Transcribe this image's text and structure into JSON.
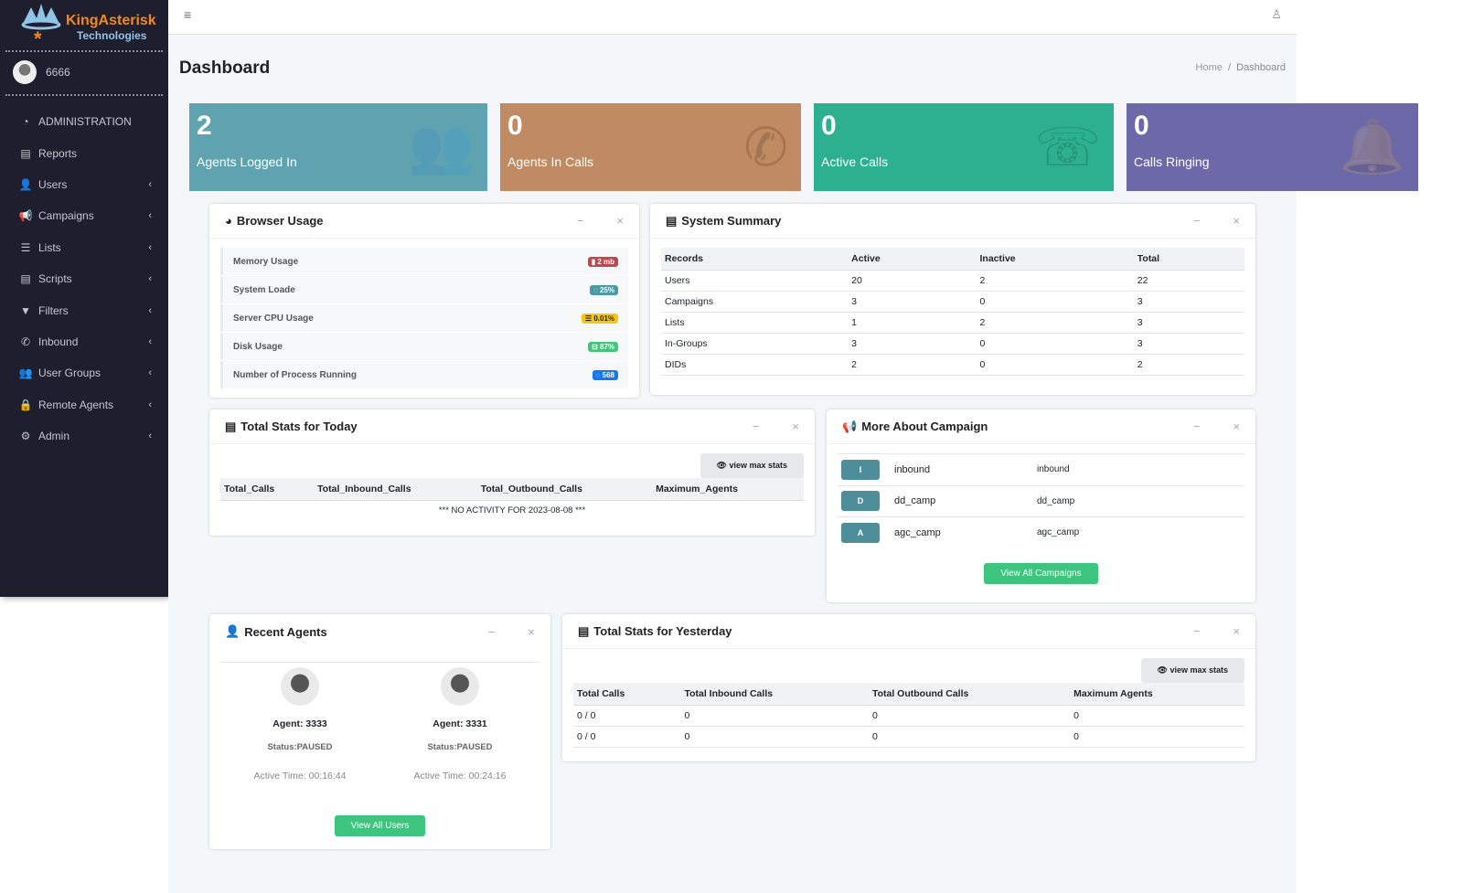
{
  "brand": {
    "name": "KingAsterisk",
    "sub": "Technologies"
  },
  "user": {
    "name": "6666"
  },
  "nav": [
    {
      "label": "ADMINISTRATION",
      "icon": "dashboard-icon",
      "glyph": "◔",
      "chev": ""
    },
    {
      "label": "Reports",
      "icon": "file-icon",
      "glyph": "▤",
      "chev": ""
    },
    {
      "label": "Users",
      "icon": "user-icon",
      "glyph": "👤",
      "chev": "‹"
    },
    {
      "label": "Campaigns",
      "icon": "bullhorn-icon",
      "glyph": "📢",
      "chev": "‹"
    },
    {
      "label": "Lists",
      "icon": "list-icon",
      "glyph": "☰",
      "chev": "‹"
    },
    {
      "label": "Scripts",
      "icon": "file-icon",
      "glyph": "▤",
      "chev": "‹"
    },
    {
      "label": "Filters",
      "icon": "filter-icon",
      "glyph": "▼",
      "chev": "‹"
    },
    {
      "label": "Inbound",
      "icon": "phone-icon",
      "glyph": "✆",
      "chev": "‹"
    },
    {
      "label": "User Groups",
      "icon": "users-icon",
      "glyph": "👥",
      "chev": "‹"
    },
    {
      "label": "Remote Agents",
      "icon": "lock-icon",
      "glyph": "🔒",
      "chev": "‹"
    },
    {
      "label": "Admin",
      "icon": "gear-icon",
      "glyph": "⚙",
      "chev": "‹"
    }
  ],
  "page": {
    "title": "Dashboard",
    "breadcrumb": [
      "Home",
      "/",
      "Dashboard"
    ]
  },
  "stats": [
    {
      "value": "2",
      "label": "Agents Logged In",
      "color": "#5fa3b1",
      "glyph": "👥"
    },
    {
      "value": "0",
      "label": "Agents In Calls",
      "color": "#c08a62",
      "glyph": "✆"
    },
    {
      "value": "0",
      "label": "Active Calls",
      "color": "#2db08f",
      "glyph": "☏"
    },
    {
      "value": "0",
      "label": "Calls Ringing",
      "color": "#6d69a8",
      "glyph": "🔔"
    }
  ],
  "browser": {
    "title": "Browser Usage",
    "rows": [
      {
        "label": "Memory Usage",
        "value": "▮ 2 mb",
        "color": "#c0464f"
      },
      {
        "label": "System Loade",
        "value": "◌ 25%",
        "color": "#4b9aa3"
      },
      {
        "label": "Server CPU Usage",
        "value": "☰ 0.01%",
        "color": "#f5c518"
      },
      {
        "label": "Disk Usage",
        "value": "⊟ 87%",
        "color": "#44c47c"
      },
      {
        "label": "Number of Process Running",
        "value": "◌ 568",
        "color": "#1677f2"
      }
    ]
  },
  "summary": {
    "title": "System Summary",
    "headers": [
      "Records",
      "Active",
      "Inactive",
      "Total"
    ],
    "rows": [
      [
        "Users",
        "20",
        "2",
        "22"
      ],
      [
        "Campaigns",
        "3",
        "0",
        "3"
      ],
      [
        "Lists",
        "1",
        "2",
        "3"
      ],
      [
        "In-Groups",
        "3",
        "0",
        "3"
      ],
      [
        "DIDs",
        "2",
        "0",
        "2"
      ]
    ]
  },
  "today": {
    "title": "Total Stats for Today",
    "button": "👁 view max stats",
    "headers": [
      "Total_Calls",
      "Total_Inbound_Calls",
      "Total_Outbound_Calls",
      "Maximum_Agents"
    ],
    "message": "*** NO ACTIVITY FOR  2023-08-08 ***"
  },
  "campaign": {
    "title": "More About Campaign",
    "rows": [
      {
        "badge": "I",
        "name": "inbound",
        "id": "inbound"
      },
      {
        "badge": "D",
        "name": "dd_camp",
        "id": "dd_camp"
      },
      {
        "badge": "A",
        "name": "agc_camp",
        "id": "agc_camp"
      }
    ],
    "button": "View All Campaigns"
  },
  "agents": {
    "title": "Recent Agents",
    "list": [
      {
        "name": "Agent: 3333",
        "status": "Status:PAUSED",
        "time": "Active Time: 00:16:44"
      },
      {
        "name": "Agent: 3331",
        "status": "Status:PAUSED",
        "time": "Active Time: 00:24:16"
      }
    ],
    "button": "View All Users"
  },
  "yesterday": {
    "title": "Total Stats for Yesterday",
    "button": "👁 view max stats",
    "headers": [
      "Total Calls",
      "Total Inbound Calls",
      "Total Outbound Calls",
      "Maximum Agents"
    ],
    "rows": [
      [
        "0 / 0",
        "0",
        "0",
        "0"
      ],
      [
        "0 / 0",
        "0",
        "0",
        "0"
      ]
    ]
  },
  "tools": {
    "minimize": "−",
    "close": "×"
  }
}
